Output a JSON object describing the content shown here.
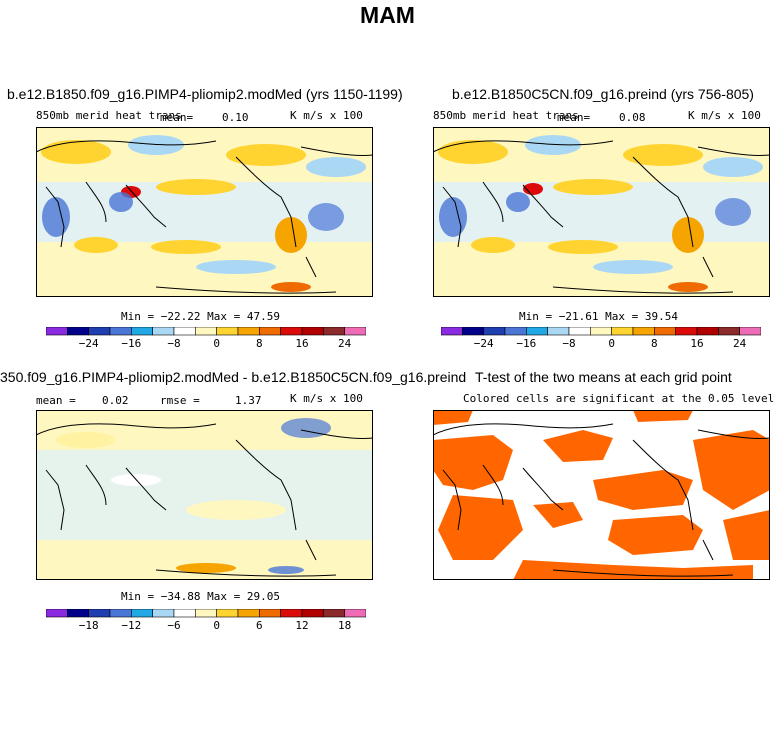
{
  "title": "MAM",
  "colorbar": {
    "colors": [
      "#8a2be2",
      "#00008b",
      "#1f3fb0",
      "#4a77d6",
      "#21a9e6",
      "#aad8f4",
      "#ffffff",
      "#fff7c0",
      "#ffd430",
      "#f5a400",
      "#ef6a00",
      "#dd0a0a",
      "#b10000",
      "#8b2a2a",
      "#ee6cb6"
    ]
  },
  "panels": [
    {
      "title": "b.e12.B1850.f09_g16.PIMP4-pliomip2.modMed (yrs 1150-1199)",
      "left_text": "850mb merid heat trans",
      "mean_label": "mean=",
      "mean_value": "0.10",
      "units": "K m/s x 100",
      "stats": "Min = −22.22 Max =  47.59",
      "ticks": [
        "−24",
        "−16",
        "−8",
        "0",
        "8",
        "16",
        "24"
      ]
    },
    {
      "title": "b.e12.B1850C5CN.f09_g16.preind (yrs 756-805)",
      "left_text": "850mb merid heat trans",
      "mean_label": "mean=",
      "mean_value": "0.08",
      "units": "K m/s x 100",
      "stats": "Min = −21.61 Max =  39.54",
      "ticks": [
        "−24",
        "−16",
        "−8",
        "0",
        "8",
        "16",
        "24"
      ]
    },
    {
      "title": "350.f09_g16.PIMP4-pliomip2.modMed - b.e12.B1850C5CN.f09_g16.preind",
      "mean_label": "mean =",
      "mean_value": "0.02",
      "rmse_label": "rmse =",
      "rmse_value": "1.37",
      "units": "K m/s x 100",
      "stats": "Min = −34.88 Max =  29.05",
      "ticks": [
        "−18",
        "−12",
        "−6",
        "0",
        "6",
        "12",
        "18"
      ]
    },
    {
      "title": "T-test of the two means at each grid point",
      "subtitle": "Colored cells are significant at the 0.05 level"
    }
  ],
  "chart_data": [
    {
      "type": "heatmap",
      "title": "b.e12.B1850.f09_g16.PIMP4-pliomip2.modMed (yrs 1150-1199)",
      "variable": "850mb merid heat trans",
      "units": "K m/s x 100",
      "mean": 0.1,
      "min": -22.22,
      "max": 47.59,
      "colorbar_ticks": [
        -24,
        -16,
        -8,
        0,
        8,
        16,
        24
      ]
    },
    {
      "type": "heatmap",
      "title": "b.e12.B1850C5CN.f09_g16.preind (yrs 756-805)",
      "variable": "850mb merid heat trans",
      "units": "K m/s x 100",
      "mean": 0.08,
      "min": -21.61,
      "max": 39.54,
      "colorbar_ticks": [
        -24,
        -16,
        -8,
        0,
        8,
        16,
        24
      ]
    },
    {
      "type": "heatmap",
      "title": "350.f09_g16.PIMP4-pliomip2.modMed - b.e12.B1850C5CN.f09_g16.preind",
      "units": "K m/s x 100",
      "mean": 0.02,
      "rmse": 1.37,
      "min": -34.88,
      "max": 29.05,
      "colorbar_ticks": [
        -18,
        -12,
        -6,
        0,
        6,
        12,
        18
      ]
    },
    {
      "type": "heatmap",
      "title": "T-test of the two means at each grid point",
      "subtitle": "Colored cells are significant at the 0.05 level",
      "significant_color": "#ff6600"
    }
  ]
}
